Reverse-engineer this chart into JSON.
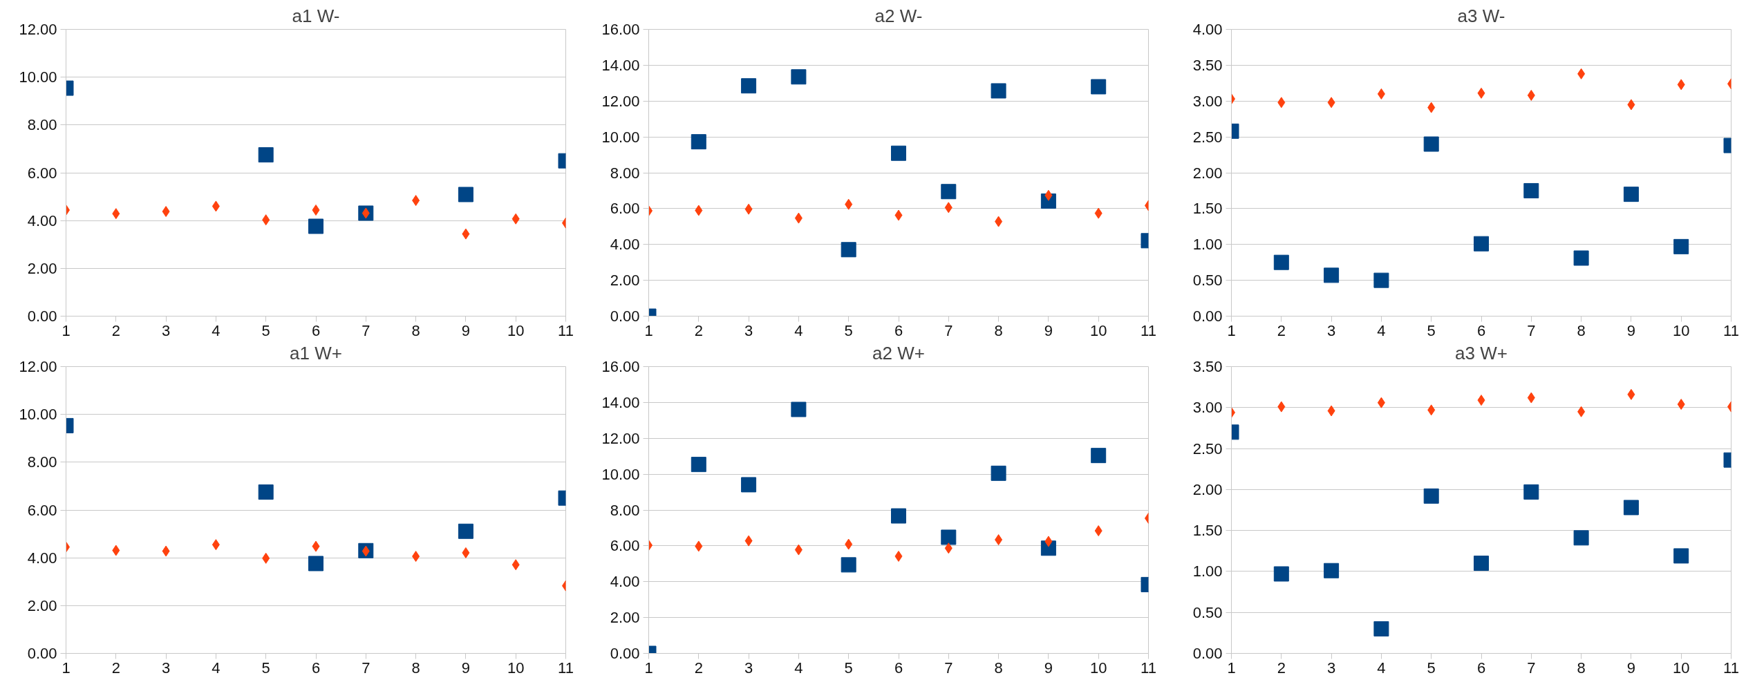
{
  "chart_data": [
    {
      "type": "scatter",
      "title": "a1 W-",
      "xlim": [
        1,
        11
      ],
      "xticks": [
        1,
        2,
        3,
        4,
        5,
        6,
        7,
        8,
        9,
        10,
        11
      ],
      "ylim": [
        0,
        12
      ],
      "yticks": [
        {
          "value": 0,
          "label": "0.00"
        },
        {
          "value": 2,
          "label": "2.00"
        },
        {
          "value": 4,
          "label": "4.00"
        },
        {
          "value": 6,
          "label": "6.00"
        },
        {
          "value": 8,
          "label": "8.00"
        },
        {
          "value": 10,
          "label": "10.00"
        },
        {
          "value": 12,
          "label": "12.00"
        }
      ],
      "grid": "y",
      "series": [
        {
          "color": "#004586",
          "marker": "square",
          "x": [
            1,
            5,
            6,
            7,
            9,
            11
          ],
          "values": [
            9.54,
            6.75,
            3.76,
            4.31,
            5.09,
            6.5
          ]
        },
        {
          "color": "#ff420e",
          "marker": "diamond",
          "x": [
            1,
            2,
            3,
            4,
            5,
            6,
            7,
            8,
            9,
            10,
            11
          ],
          "values": [
            4.44,
            4.29,
            4.38,
            4.6,
            4.03,
            4.44,
            4.31,
            4.84,
            3.44,
            4.07,
            3.9
          ]
        }
      ]
    },
    {
      "type": "scatter",
      "title": "a2 W-",
      "xlim": [
        1,
        11
      ],
      "xticks": [
        1,
        2,
        3,
        4,
        5,
        6,
        7,
        8,
        9,
        10,
        11
      ],
      "ylim": [
        0,
        16
      ],
      "yticks": [
        {
          "value": 0,
          "label": "0.00"
        },
        {
          "value": 2,
          "label": "2.00"
        },
        {
          "value": 4,
          "label": "4.00"
        },
        {
          "value": 6,
          "label": "6.00"
        },
        {
          "value": 8,
          "label": "8.00"
        },
        {
          "value": 10,
          "label": "10.00"
        },
        {
          "value": 12,
          "label": "12.00"
        },
        {
          "value": 14,
          "label": "14.00"
        },
        {
          "value": 16,
          "label": "16.00"
        }
      ],
      "grid": "y",
      "series": [
        {
          "color": "#004586",
          "marker": "square",
          "x": [
            1,
            2,
            3,
            4,
            5,
            6,
            7,
            8,
            9,
            10,
            11
          ],
          "values": [
            0,
            9.73,
            12.85,
            13.35,
            3.71,
            9.09,
            6.95,
            12.57,
            6.42,
            12.8,
            4.21
          ]
        },
        {
          "color": "#ff420e",
          "marker": "diamond",
          "x": [
            1,
            2,
            3,
            4,
            5,
            6,
            7,
            8,
            9,
            10,
            11
          ],
          "values": [
            5.88,
            5.9,
            5.97,
            5.47,
            6.24,
            5.63,
            6.06,
            5.28,
            6.74,
            5.74,
            6.17
          ]
        }
      ]
    },
    {
      "type": "scatter",
      "title": "a3 W-",
      "xlim": [
        1,
        11
      ],
      "xticks": [
        1,
        2,
        3,
        4,
        5,
        6,
        7,
        8,
        9,
        10,
        11
      ],
      "ylim": [
        0,
        4
      ],
      "yticks": [
        {
          "value": 0,
          "label": "0.00"
        },
        {
          "value": 0.5,
          "label": "0.50"
        },
        {
          "value": 1,
          "label": "1.00"
        },
        {
          "value": 1.5,
          "label": "1.50"
        },
        {
          "value": 2,
          "label": "2.00"
        },
        {
          "value": 2.5,
          "label": "2.50"
        },
        {
          "value": 3,
          "label": "3.00"
        },
        {
          "value": 3.5,
          "label": "3.50"
        },
        {
          "value": 4,
          "label": "4.00"
        }
      ],
      "grid": "y",
      "series": [
        {
          "color": "#004586",
          "marker": "square",
          "x": [
            1,
            2,
            3,
            4,
            5,
            6,
            7,
            8,
            9,
            10,
            11
          ],
          "values": [
            2.58,
            0.75,
            0.57,
            0.5,
            2.4,
            1.01,
            1.75,
            0.81,
            1.7,
            0.97,
            2.38
          ]
        },
        {
          "color": "#ff420e",
          "marker": "diamond",
          "x": [
            1,
            2,
            3,
            4,
            5,
            6,
            7,
            8,
            9,
            10,
            11
          ],
          "values": [
            3.03,
            2.98,
            2.98,
            3.1,
            2.91,
            3.11,
            3.08,
            3.38,
            2.95,
            3.23,
            3.24
          ]
        }
      ]
    },
    {
      "type": "scatter",
      "title": "a1 W+",
      "xlim": [
        1,
        11
      ],
      "xticks": [
        1,
        2,
        3,
        4,
        5,
        6,
        7,
        8,
        9,
        10,
        11
      ],
      "ylim": [
        0,
        12
      ],
      "yticks": [
        {
          "value": 0,
          "label": "0.00"
        },
        {
          "value": 2,
          "label": "2.00"
        },
        {
          "value": 4,
          "label": "4.00"
        },
        {
          "value": 6,
          "label": "6.00"
        },
        {
          "value": 8,
          "label": "8.00"
        },
        {
          "value": 10,
          "label": "10.00"
        },
        {
          "value": 12,
          "label": "12.00"
        }
      ],
      "grid": "y",
      "series": [
        {
          "color": "#004586",
          "marker": "square",
          "x": [
            1,
            5,
            6,
            7,
            9,
            11
          ],
          "values": [
            9.53,
            6.75,
            3.76,
            4.3,
            5.11,
            6.5
          ]
        },
        {
          "color": "#ff420e",
          "marker": "diamond",
          "x": [
            1,
            2,
            3,
            4,
            5,
            6,
            7,
            8,
            9,
            10,
            11
          ],
          "values": [
            4.45,
            4.31,
            4.28,
            4.55,
            3.98,
            4.48,
            4.28,
            4.06,
            4.21,
            3.71,
            2.83
          ]
        }
      ]
    },
    {
      "type": "scatter",
      "title": "a2 W+",
      "xlim": [
        1,
        11
      ],
      "xticks": [
        1,
        2,
        3,
        4,
        5,
        6,
        7,
        8,
        9,
        10,
        11
      ],
      "ylim": [
        0,
        16
      ],
      "yticks": [
        {
          "value": 0,
          "label": "0.00"
        },
        {
          "value": 2,
          "label": "2.00"
        },
        {
          "value": 4,
          "label": "4.00"
        },
        {
          "value": 6,
          "label": "6.00"
        },
        {
          "value": 8,
          "label": "8.00"
        },
        {
          "value": 10,
          "label": "10.00"
        },
        {
          "value": 12,
          "label": "12.00"
        },
        {
          "value": 14,
          "label": "14.00"
        },
        {
          "value": 16,
          "label": "16.00"
        }
      ],
      "grid": "y",
      "series": [
        {
          "color": "#004586",
          "marker": "square",
          "x": [
            1,
            2,
            3,
            4,
            5,
            6,
            7,
            8,
            9,
            10,
            11
          ],
          "values": [
            0,
            10.54,
            9.41,
            13.61,
            4.94,
            7.67,
            6.48,
            10.05,
            5.87,
            11.04,
            3.84
          ]
        },
        {
          "color": "#ff420e",
          "marker": "diamond",
          "x": [
            1,
            2,
            3,
            4,
            5,
            6,
            7,
            8,
            9,
            10,
            11
          ],
          "values": [
            6.03,
            5.98,
            6.28,
            5.78,
            6.09,
            5.42,
            5.87,
            6.34,
            6.25,
            6.84,
            7.54
          ]
        }
      ]
    },
    {
      "type": "scatter",
      "title": "a3 W+",
      "xlim": [
        1,
        11
      ],
      "xticks": [
        1,
        2,
        3,
        4,
        5,
        6,
        7,
        8,
        9,
        10,
        11
      ],
      "ylim": [
        0,
        3.5
      ],
      "yticks": [
        {
          "value": 0,
          "label": "0.00"
        },
        {
          "value": 0.5,
          "label": "0.50"
        },
        {
          "value": 1,
          "label": "1.00"
        },
        {
          "value": 1.5,
          "label": "1.50"
        },
        {
          "value": 2,
          "label": "2.00"
        },
        {
          "value": 2.5,
          "label": "2.50"
        },
        {
          "value": 3,
          "label": "3.00"
        },
        {
          "value": 3.5,
          "label": "3.50"
        }
      ],
      "grid": "y",
      "series": [
        {
          "color": "#004586",
          "marker": "square",
          "x": [
            1,
            2,
            3,
            4,
            5,
            6,
            7,
            8,
            9,
            10,
            11
          ],
          "values": [
            2.7,
            0.97,
            1.01,
            0.3,
            1.92,
            1.1,
            1.97,
            1.41,
            1.78,
            1.19,
            2.36
          ]
        },
        {
          "color": "#ff420e",
          "marker": "diamond",
          "x": [
            1,
            2,
            3,
            4,
            5,
            6,
            7,
            8,
            9,
            10,
            11
          ],
          "values": [
            2.94,
            3.01,
            2.96,
            3.06,
            2.97,
            3.09,
            3.12,
            2.95,
            3.16,
            3.04,
            3.01
          ]
        }
      ]
    }
  ]
}
